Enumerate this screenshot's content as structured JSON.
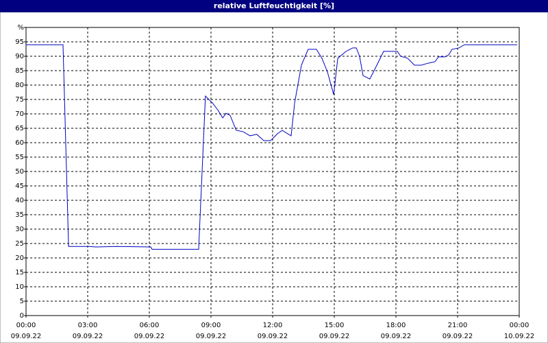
{
  "chart_data": {
    "type": "line",
    "title": "relative Luftfeuchtigkeit [%]",
    "x": [
      0,
      1.8,
      2.07,
      3.07,
      3.4,
      4.4,
      6.07,
      6.13,
      8.4,
      8.73,
      9.07,
      9.33,
      9.57,
      9.73,
      9.93,
      10.23,
      10.57,
      10.9,
      11.23,
      11.57,
      11.9,
      12.07,
      12.23,
      12.47,
      12.73,
      12.9,
      13.07,
      13.4,
      13.73,
      14.13,
      14.4,
      14.67,
      14.97,
      15.17,
      15.57,
      15.9,
      16.07,
      16.23,
      16.4,
      16.73,
      17.07,
      17.4,
      17.9,
      18.07,
      18.23,
      18.57,
      18.9,
      19.23,
      19.57,
      19.9,
      20.07,
      20.4,
      20.57,
      20.73,
      21.07,
      21.33,
      23.9
    ],
    "series": [
      {
        "name": "relative Luftfeuchtigkeit",
        "color": "#0000c0",
        "values": [
          94,
          94,
          24,
          24,
          23.8,
          24,
          23.8,
          23,
          23,
          76.2,
          73.8,
          71.4,
          68.6,
          70.2,
          69.5,
          64.3,
          63.8,
          62.4,
          62.9,
          60.7,
          60.7,
          61.9,
          63.1,
          64.3,
          63.1,
          62.4,
          73.8,
          86.9,
          92.4,
          92.4,
          89.3,
          84.5,
          76.7,
          89.3,
          91.7,
          92.9,
          92.9,
          90,
          83.3,
          82.1,
          86.9,
          91.7,
          91.7,
          91.7,
          90,
          89.3,
          86.9,
          86.9,
          87.6,
          88.1,
          89.8,
          89.8,
          90.5,
          92.4,
          92.9,
          94,
          94
        ]
      }
    ],
    "xlim": [
      0,
      24
    ],
    "ylim": [
      0,
      100
    ],
    "xticks": [
      {
        "value": 0,
        "label": "00:00"
      },
      {
        "value": 3,
        "label": "03:00"
      },
      {
        "value": 6,
        "label": "06:00"
      },
      {
        "value": 9,
        "label": "09:00"
      },
      {
        "value": 12,
        "label": "12:00"
      },
      {
        "value": 15,
        "label": "15:00"
      },
      {
        "value": 18,
        "label": "18:00"
      },
      {
        "value": 21,
        "label": "21:00"
      },
      {
        "value": 24,
        "label": "00:00"
      }
    ],
    "xtick_dates": [
      "09.09.22",
      "09.09.22",
      "09.09.22",
      "09.09.22",
      "09.09.22",
      "09.09.22",
      "09.09.22",
      "09.09.22",
      "10.09.22"
    ],
    "yticks": [
      0,
      5,
      10,
      15,
      20,
      25,
      30,
      35,
      40,
      45,
      50,
      55,
      60,
      65,
      70,
      75,
      80,
      85,
      90,
      95,
      {
        "value": 100,
        "label": "%"
      }
    ],
    "grid": true
  }
}
